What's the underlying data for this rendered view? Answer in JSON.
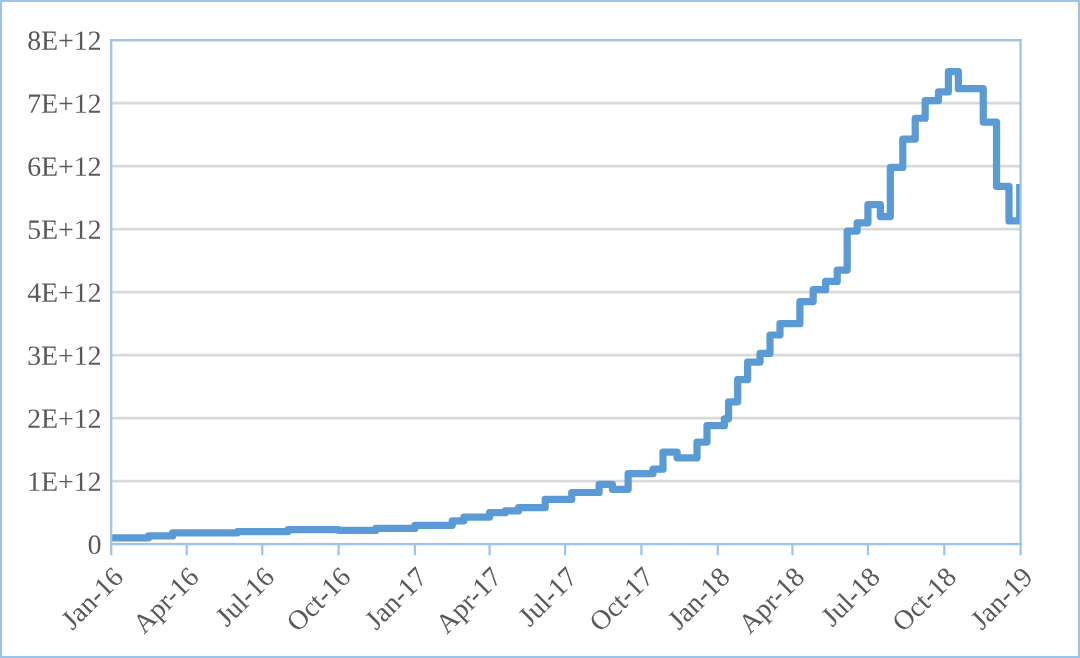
{
  "chart_data": {
    "type": "step",
    "x": [
      "2016-01-01",
      "2016-02-15",
      "2016-03-15",
      "2016-06-01",
      "2016-08-01",
      "2016-10-01",
      "2016-11-15",
      "2017-01-01",
      "2017-02-15",
      "2017-03-01",
      "2017-04-01",
      "2017-04-20",
      "2017-05-06",
      "2017-06-07",
      "2017-07-09",
      "2017-08-11",
      "2017-08-27",
      "2017-09-15",
      "2017-10-15",
      "2017-10-27",
      "2017-11-13",
      "2017-12-07",
      "2017-12-19",
      "2018-01-09",
      "2018-01-14",
      "2018-01-25",
      "2018-02-06",
      "2018-02-21",
      "2018-03-05",
      "2018-03-17",
      "2018-04-10",
      "2018-04-26",
      "2018-05-11",
      "2018-05-25",
      "2018-06-06",
      "2018-06-18",
      "2018-07-01",
      "2018-07-16",
      "2018-07-28",
      "2018-08-12",
      "2018-08-27",
      "2018-09-08",
      "2018-09-24",
      "2018-10-06",
      "2018-10-18",
      "2018-11-17",
      "2018-12-03",
      "2018-12-18",
      "2018-12-31"
    ],
    "series": [
      {
        "color": "#5b9bd5",
        "values": [
          100000000000.0,
          130000000000.0,
          180000000000.0,
          200000000000.0,
          230000000000.0,
          220000000000.0,
          250000000000.0,
          300000000000.0,
          370000000000.0,
          430000000000.0,
          500000000000.0,
          530000000000.0,
          580000000000.0,
          710000000000.0,
          820000000000.0,
          950000000000.0,
          870000000000.0,
          1120000000000.0,
          1190000000000.0,
          1460000000000.0,
          1370000000000.0,
          1620000000000.0,
          1880000000000.0,
          1990000000000.0,
          2260000000000.0,
          2610000000000.0,
          2890000000000.0,
          3030000000000.0,
          3320000000000.0,
          3500000000000.0,
          3850000000000.0,
          4040000000000.0,
          4170000000000.0,
          4350000000000.0,
          4970000000000.0,
          5100000000000.0,
          5390000000000.0,
          5200000000000.0,
          5980000000000.0,
          6430000000000.0,
          6760000000000.0,
          7040000000000.0,
          7180000000000.0,
          7500000000000.0,
          7230000000000.0,
          6700000000000.0,
          5680000000000.0,
          5130000000000.0,
          5660000000000.0
        ]
      }
    ],
    "xlim": [
      "2016-01-01",
      "2019-01-01"
    ],
    "xticks": [
      {
        "value": "2016-01-01",
        "label": "Jan-16"
      },
      {
        "value": "2016-04-01",
        "label": "Apr-16"
      },
      {
        "value": "2016-07-01",
        "label": "Jul-16"
      },
      {
        "value": "2016-10-01",
        "label": "Oct-16"
      },
      {
        "value": "2017-01-01",
        "label": "Jan-17"
      },
      {
        "value": "2017-04-01",
        "label": "Apr-17"
      },
      {
        "value": "2017-07-01",
        "label": "Jul-17"
      },
      {
        "value": "2017-10-01",
        "label": "Oct-17"
      },
      {
        "value": "2018-01-01",
        "label": "Jan-18"
      },
      {
        "value": "2018-04-01",
        "label": "Apr-18"
      },
      {
        "value": "2018-07-01",
        "label": "Jul-18"
      },
      {
        "value": "2018-10-01",
        "label": "Oct-18"
      },
      {
        "value": "2019-01-01",
        "label": "Jan-19"
      }
    ],
    "ylim": [
      0,
      8000000000000.0
    ],
    "yticks": [
      0,
      {
        "value": 1000000000000.0,
        "label": "1E+12"
      },
      {
        "value": 2000000000000.0,
        "label": "2E+12"
      },
      {
        "value": 3000000000000.0,
        "label": "3E+12"
      },
      {
        "value": 4000000000000.0,
        "label": "4E+12"
      },
      {
        "value": 5000000000000.0,
        "label": "5E+12"
      },
      {
        "value": 6000000000000.0,
        "label": "6E+12"
      },
      {
        "value": 7000000000000.0,
        "label": "7E+12"
      },
      {
        "value": 8000000000000.0,
        "label": "8E+12"
      }
    ],
    "grid": "y",
    "marker": "none",
    "line_style": "solid"
  }
}
